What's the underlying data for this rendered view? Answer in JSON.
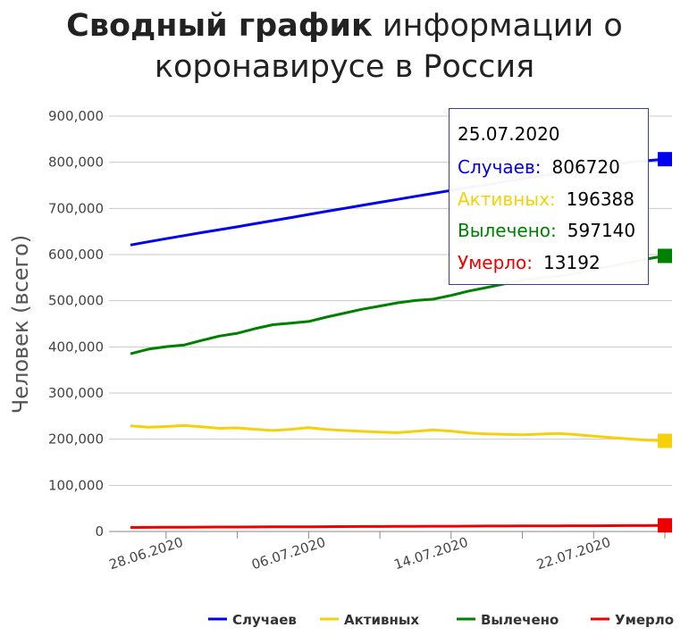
{
  "title": {
    "bold": "Сводный график",
    "rest": "информации о коронавирусе в Россия"
  },
  "chart_data": {
    "type": "line",
    "title": "Сводный график информации о коронавирусе в Россия",
    "xlabel": "",
    "ylabel": "Человек (всего)",
    "ylim": [
      0,
      900000
    ],
    "yticks": [
      "0",
      "100,000",
      "200,000",
      "300,000",
      "400,000",
      "500,000",
      "600,000",
      "700,000",
      "800,000",
      "900,000"
    ],
    "xticks": [
      "28.06.2020",
      "06.07.2020",
      "14.07.2020",
      "22.07.2020"
    ],
    "x": [
      "25.06.2020",
      "26.06.2020",
      "27.06.2020",
      "28.06.2020",
      "29.06.2020",
      "30.06.2020",
      "01.07.2020",
      "02.07.2020",
      "03.07.2020",
      "04.07.2020",
      "05.07.2020",
      "06.07.2020",
      "07.07.2020",
      "08.07.2020",
      "09.07.2020",
      "10.07.2020",
      "11.07.2020",
      "12.07.2020",
      "13.07.2020",
      "14.07.2020",
      "15.07.2020",
      "16.07.2020",
      "17.07.2020",
      "18.07.2020",
      "19.07.2020",
      "20.07.2020",
      "21.07.2020",
      "22.07.2020",
      "23.07.2020",
      "24.07.2020",
      "25.07.2020"
    ],
    "series": [
      {
        "name": "Случаев",
        "color": "#0000ee",
        "values": [
          620800,
          627600,
          634400,
          641000,
          647600,
          654000,
          660200,
          666900,
          673500,
          680200,
          686900,
          693600,
          700000,
          706700,
          713200,
          719700,
          726100,
          732500,
          739000,
          745300,
          751600,
          757900,
          764200,
          770300,
          776200,
          782000,
          787800,
          794000,
          800100,
          803500,
          806720
        ]
      },
      {
        "name": "Активных",
        "color": "#f5d10a",
        "values": [
          229000,
          226000,
          227500,
          229500,
          227000,
          223500,
          224500,
          221500,
          219000,
          221500,
          225000,
          221000,
          219000,
          217000,
          215500,
          214000,
          217000,
          220000,
          217500,
          213500,
          211500,
          210500,
          209500,
          211000,
          212500,
          210000,
          206500,
          203500,
          200500,
          198000,
          196388
        ]
      },
      {
        "name": "Вылечено",
        "color": "#008000",
        "values": [
          385000,
          395000,
          400500,
          404000,
          414000,
          423500,
          429500,
          439500,
          448000,
          451500,
          455000,
          464500,
          473000,
          481500,
          488500,
          495500,
          500500,
          503500,
          511500,
          521000,
          528500,
          536500,
          545000,
          549500,
          553000,
          559000,
          567500,
          575000,
          583000,
          590500,
          597140
        ]
      },
      {
        "name": "Умерло",
        "color": "#ee0000",
        "values": [
          8800,
          8970,
          9140,
          9300,
          9450,
          9590,
          9740,
          9890,
          10030,
          10180,
          10320,
          10480,
          10630,
          10770,
          10930,
          11080,
          11210,
          11340,
          11470,
          11620,
          11760,
          11890,
          12020,
          12140,
          12250,
          12360,
          12480,
          12600,
          12730,
          12870,
          13192
        ]
      }
    ],
    "legend": "bottom-right",
    "grid": true
  },
  "tooltip": {
    "date": "25.07.2020",
    "rows": [
      {
        "label": "Случаев:",
        "value": "806720",
        "color": "#0000ee"
      },
      {
        "label": "Активных:",
        "value": "196388",
        "color": "#f5d10a"
      },
      {
        "label": "Вылечено:",
        "value": "597140",
        "color": "#008000"
      },
      {
        "label": "Умерло:",
        "value": "13192",
        "color": "#ee0000"
      }
    ]
  }
}
